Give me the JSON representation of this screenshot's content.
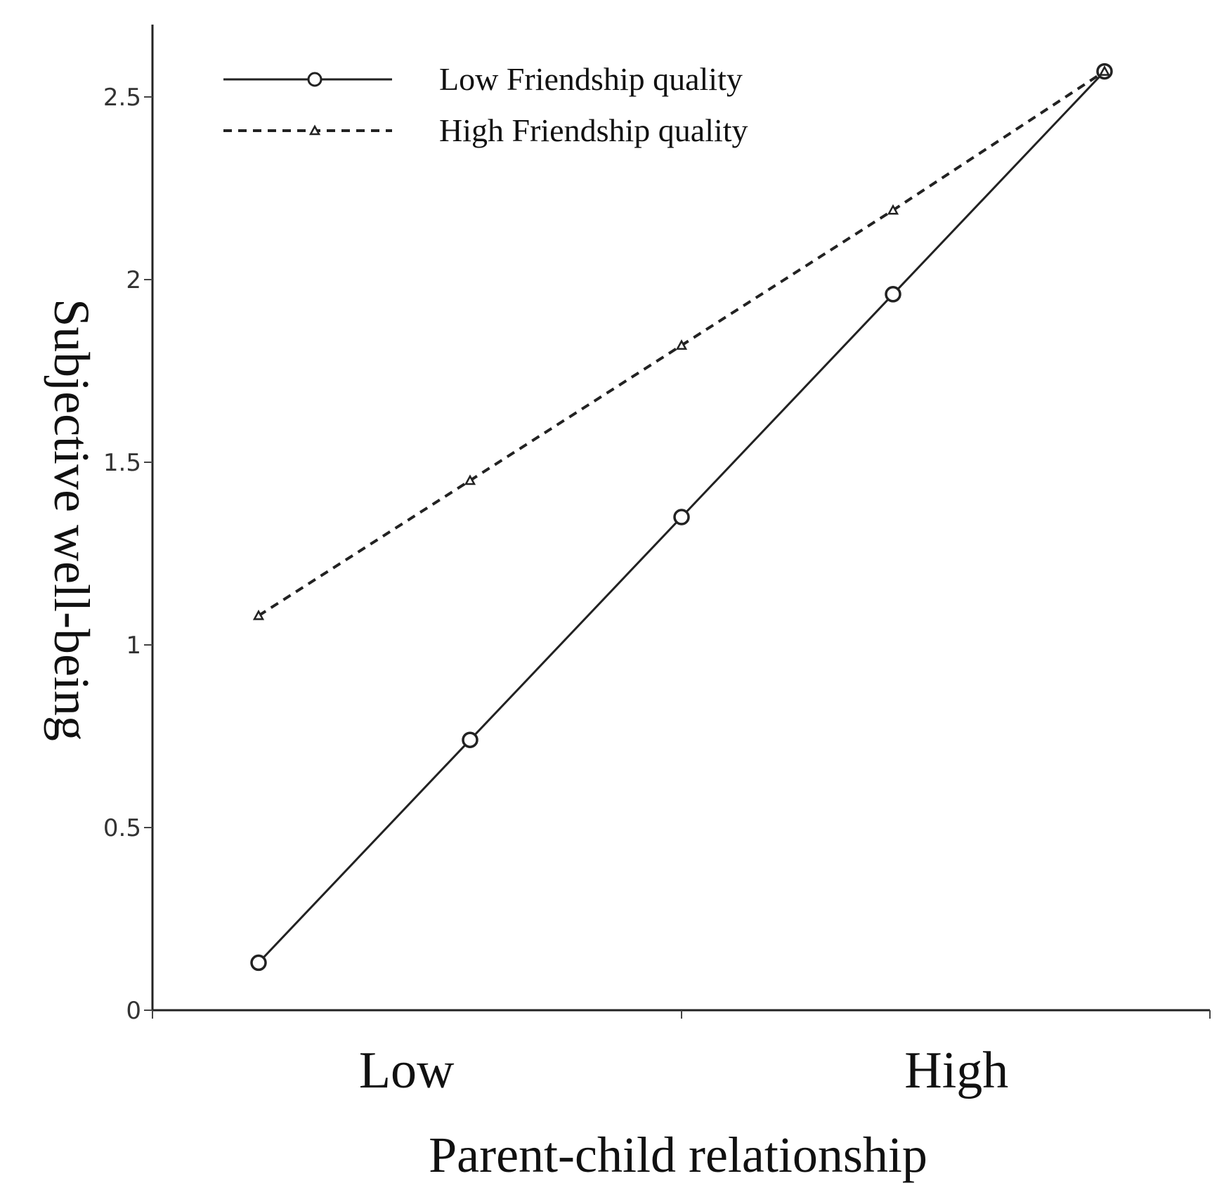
{
  "chart_data": {
    "type": "line",
    "title": "",
    "xlabel": "Parent-child relationship",
    "ylabel": "Subjective well-being",
    "x": [
      0,
      1,
      2,
      3,
      4
    ],
    "x_category_labels": [
      "Low",
      "High"
    ],
    "ylim": [
      0,
      2.7
    ],
    "yticks": [
      0,
      0.5,
      1,
      1.5,
      2,
      2.5
    ],
    "ytick_labels": [
      "0",
      "0.5",
      "1",
      "1.5",
      "2",
      "2.5"
    ],
    "grid": false,
    "legend_position": "top-left",
    "series": [
      {
        "name": "Low Friendship quality",
        "style": "solid",
        "marker": "circle",
        "color": "#222222",
        "values": [
          0.13,
          0.74,
          1.35,
          1.96,
          2.57
        ]
      },
      {
        "name": "High Friendship quality",
        "style": "dashed",
        "marker": "triangle",
        "color": "#222222",
        "values": [
          1.08,
          1.45,
          1.82,
          2.19,
          2.57
        ]
      }
    ]
  }
}
